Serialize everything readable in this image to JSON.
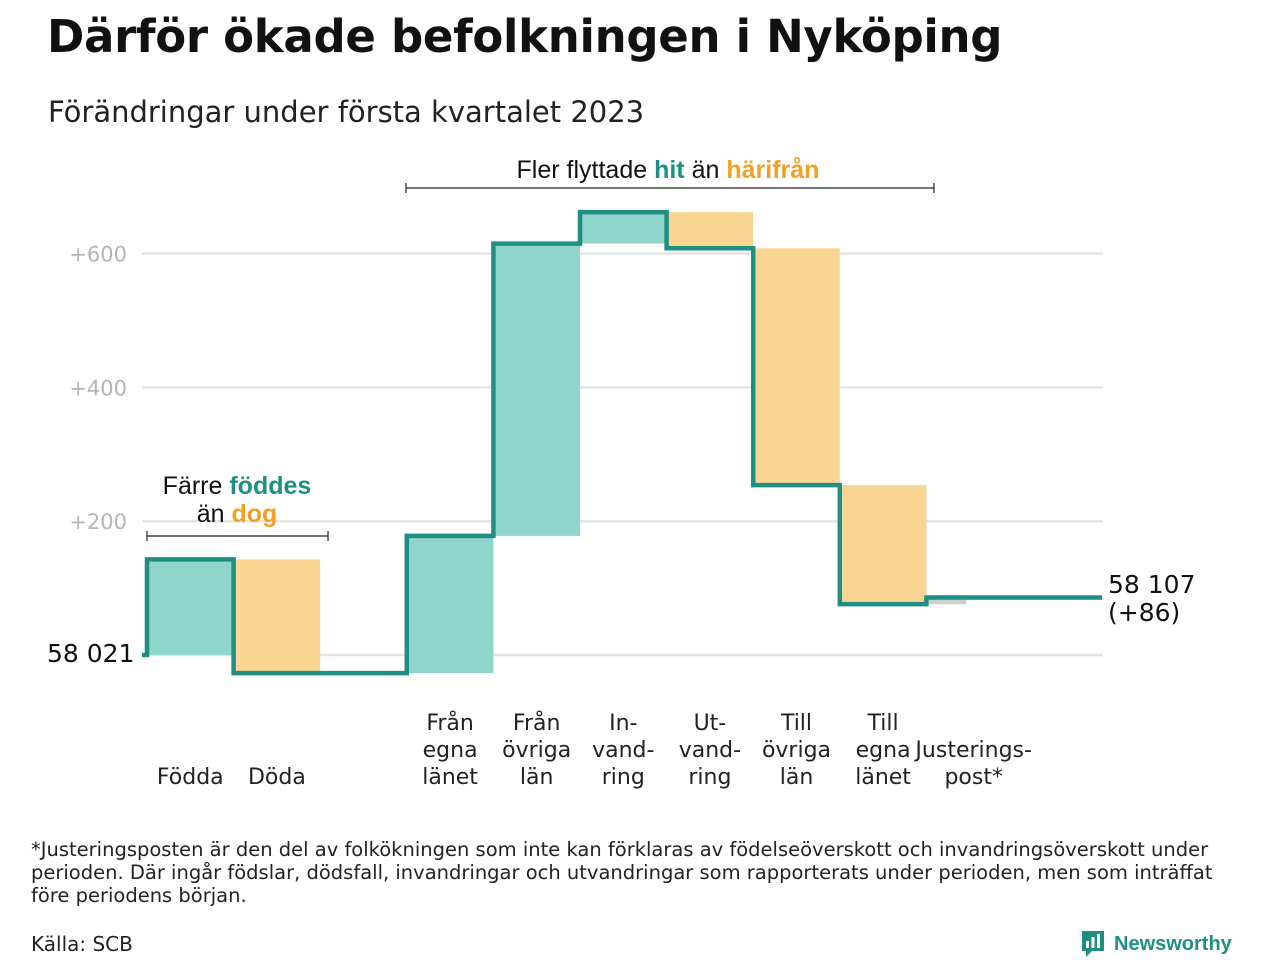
{
  "header": {
    "title": "Därför ökade befolkningen i Nyköping",
    "subtitle": "Förändringar under första kvartalet 2023"
  },
  "annotations": {
    "births_deaths": {
      "line1": "Färre",
      "line1_hl": "föddes",
      "line2": "än",
      "line2_hl": "dog"
    },
    "migration": {
      "prefix": "Fler flyttade",
      "hl1": "hit",
      "mid": "än",
      "hl2": "härifrån"
    }
  },
  "labels": {
    "start": "58 021",
    "end_value": "58 107",
    "end_change": "(+86)"
  },
  "footnote": "*Justeringsposten är den del av folkökningen som inte kan förklaras av födelseöverskott och invandringsöverskott under perioden. Där ingår födslar, dödsfall, invandringar och utvandringar som rapporterats under perioden, men som inträffat före periodens början.",
  "source": "Källa: SCB",
  "brand": {
    "name": "Newsworthy",
    "icon": "newsworthy-logo-icon"
  },
  "colors": {
    "increase": "#8fd5cc",
    "decrease": "#fad592",
    "adjustment": "#c9d2d3",
    "line": "#1e8f82",
    "highlight_teal": "#1e8f82",
    "highlight_orange": "#eea124",
    "grid": "#e4e4e4"
  },
  "chart_data": {
    "type": "waterfall",
    "title": "Därför ökade befolkningen i Nyköping",
    "subtitle": "Förändringar under första kvartalet 2023",
    "start_value": 58021,
    "end_value": 58107,
    "net_change": 86,
    "y_ticks": [
      {
        "value": 200,
        "label": "+200"
      },
      {
        "value": 400,
        "label": "+400"
      },
      {
        "value": 600,
        "label": "+600"
      }
    ],
    "ylim": [
      -30,
      680
    ],
    "grid": true,
    "categories": [
      {
        "label": [
          "Födda"
        ],
        "change": 143,
        "kind": "increase"
      },
      {
        "label": [
          "Döda"
        ],
        "change": -170,
        "kind": "decrease"
      },
      {
        "label": [],
        "change": 0,
        "kind": "gap"
      },
      {
        "label": [
          "Från",
          "egna",
          "länet"
        ],
        "change": 205,
        "kind": "increase"
      },
      {
        "label": [
          "Från",
          "övriga",
          "län"
        ],
        "change": 437,
        "kind": "increase"
      },
      {
        "label": [
          "In-",
          "vand-",
          "ring"
        ],
        "change": 47,
        "kind": "increase"
      },
      {
        "label": [
          "Ut-",
          "vand-",
          "ring"
        ],
        "change": -54,
        "kind": "decrease"
      },
      {
        "label": [
          "Till",
          "övriga",
          "län"
        ],
        "change": -354,
        "kind": "decrease"
      },
      {
        "label": [
          "Till",
          "egna",
          "länet"
        ],
        "change": -178,
        "kind": "decrease"
      },
      {
        "label": [
          "Justerings-",
          "post*"
        ],
        "change": 10,
        "kind": "adjustment"
      }
    ]
  }
}
